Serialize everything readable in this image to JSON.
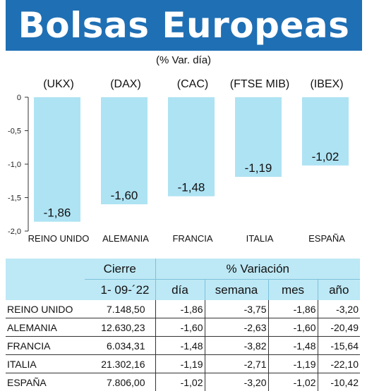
{
  "title": "Bolsas Europeas",
  "subtitle": "(% Var. día)",
  "colors": {
    "banner": "#1f6fb4",
    "bar": "#aee3f3",
    "header": "#bde8f5"
  },
  "chart_data": {
    "type": "bar",
    "tickers": [
      "(UKX)",
      "(DAX)",
      "(CAC)",
      "(FTSE MIB)",
      "(IBEX)"
    ],
    "categories": [
      "REINO UNIDO",
      "ALEMANIA",
      "FRANCIA",
      "ITALIA",
      "ESPAÑA"
    ],
    "values": [
      -1.86,
      -1.6,
      -1.48,
      -1.19,
      -1.02
    ],
    "value_labels": [
      "-1,86",
      "-1,60",
      "-1,48",
      "-1,19",
      "-1,02"
    ],
    "ylim": [
      -2.0,
      0
    ],
    "yticks": [
      "0",
      "-0,5",
      "-1,0",
      "-1,5",
      "-2,0"
    ],
    "ytick_values": [
      0,
      -0.5,
      -1.0,
      -1.5,
      -2.0
    ],
    "grid": false
  },
  "table": {
    "header_cierre": "Cierre",
    "header_variacion": "% Variación",
    "date": "1- 09-´22",
    "columns": [
      "día",
      "semana",
      "mes",
      "año"
    ],
    "rows": [
      {
        "name": "REINO UNIDO",
        "close": "7.148,50",
        "dia": "-1,86",
        "semana": "-3,75",
        "mes": "-1,86",
        "ano": "-3,20"
      },
      {
        "name": "ALEMANIA",
        "close": "12.630,23",
        "dia": "-1,60",
        "semana": "-2,63",
        "mes": "-1,60",
        "ano": "-20,49"
      },
      {
        "name": "FRANCIA",
        "close": "6.034,31",
        "dia": "-1,48",
        "semana": "-3,82",
        "mes": "-1,48",
        "ano": "-15,64"
      },
      {
        "name": "ITALIA",
        "close": "21.302,16",
        "dia": "-1,19",
        "semana": "-2,71",
        "mes": "-1,19",
        "ano": "-22,10"
      },
      {
        "name": "ESPAÑA",
        "close": "7.806,00",
        "dia": "-1,02",
        "semana": "-3,20",
        "mes": "-1,02",
        "ano": "-10,42"
      }
    ]
  }
}
